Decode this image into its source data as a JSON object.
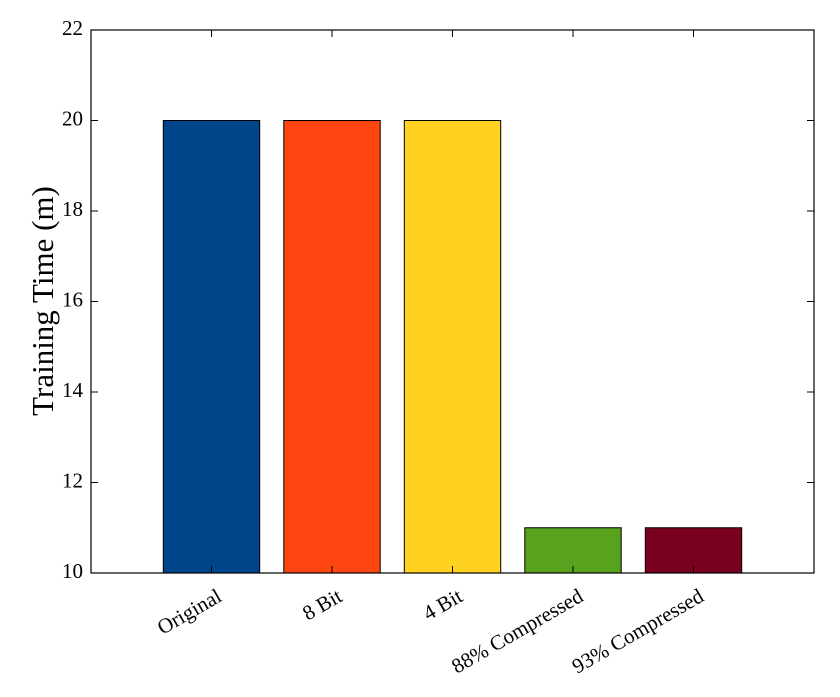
{
  "chart_data": {
    "type": "bar",
    "y_label": "Training Time (m)",
    "categories": [
      "Original",
      "8 Bit",
      "4 Bit",
      "88% Compressed",
      "93% Compressed"
    ],
    "values": [
      20,
      20,
      20,
      11,
      11
    ],
    "colors": [
      "#00448a",
      "#ff4510",
      "#ffd221",
      "#58a21e",
      "#7a0020"
    ],
    "ylim": [
      10,
      22
    ],
    "yticks": [
      10,
      12,
      14,
      16,
      18,
      20,
      22
    ],
    "grid": false
  }
}
